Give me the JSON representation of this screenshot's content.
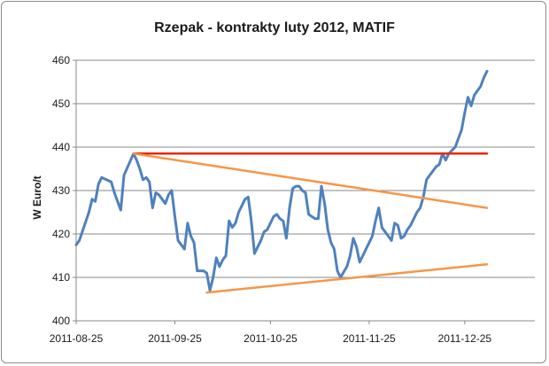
{
  "chart_data": {
    "type": "line",
    "title": "Rzepak - kontrakty luty 2012, MATIF",
    "xlabel": "",
    "ylabel": "W Euro/t",
    "ylim": [
      400,
      460
    ],
    "y_ticks": [
      400,
      410,
      420,
      430,
      440,
      450,
      460
    ],
    "x_tick_labels": [
      "2011-08-25",
      "2011-09-25",
      "2011-10-25",
      "2011-11-25",
      "2011-12-25"
    ],
    "x_range": [
      "2011-08-25",
      "2012-01-16"
    ],
    "grid": "horizontal",
    "legend": "none",
    "series": [
      {
        "color": "#4f81bd",
        "style": "solid",
        "points": [
          [
            "2011-08-25",
            417.5
          ],
          [
            "2011-08-26",
            418.5
          ],
          [
            "2011-08-29",
            425.0
          ],
          [
            "2011-08-30",
            428.0
          ],
          [
            "2011-08-31",
            427.5
          ],
          [
            "2011-09-01",
            431.5
          ],
          [
            "2011-09-02",
            433.0
          ],
          [
            "2011-09-05",
            432.0
          ],
          [
            "2011-09-06",
            429.5
          ],
          [
            "2011-09-07",
            427.5
          ],
          [
            "2011-09-08",
            425.5
          ],
          [
            "2011-09-09",
            433.5
          ],
          [
            "2011-09-12",
            438.5
          ],
          [
            "2011-09-13",
            437.0
          ],
          [
            "2011-09-14",
            435.0
          ],
          [
            "2011-09-15",
            432.5
          ],
          [
            "2011-09-16",
            433.0
          ],
          [
            "2011-09-17",
            432.0
          ],
          [
            "2011-09-18",
            426.0
          ],
          [
            "2011-09-19",
            429.5
          ],
          [
            "2011-09-20",
            429.0
          ],
          [
            "2011-09-21",
            428.0
          ],
          [
            "2011-09-22",
            427.0
          ],
          [
            "2011-09-23",
            429.0
          ],
          [
            "2011-09-24",
            430.0
          ],
          [
            "2011-09-25",
            424.0
          ],
          [
            "2011-09-26",
            418.5
          ],
          [
            "2011-09-27",
            417.5
          ],
          [
            "2011-09-28",
            416.5
          ],
          [
            "2011-09-29",
            422.5
          ],
          [
            "2011-09-30",
            419.5
          ],
          [
            "2011-10-01",
            418.0
          ],
          [
            "2011-10-02",
            411.5
          ],
          [
            "2011-10-03",
            411.5
          ],
          [
            "2011-10-04",
            411.5
          ],
          [
            "2011-10-05",
            411.0
          ],
          [
            "2011-10-06",
            407.0
          ],
          [
            "2011-10-07",
            410.0
          ],
          [
            "2011-10-08",
            414.5
          ],
          [
            "2011-10-09",
            412.5
          ],
          [
            "2011-10-10",
            414.0
          ],
          [
            "2011-10-11",
            415.0
          ],
          [
            "2011-10-12",
            423.0
          ],
          [
            "2011-10-13",
            421.5
          ],
          [
            "2011-10-14",
            422.5
          ],
          [
            "2011-10-15",
            425.0
          ],
          [
            "2011-10-16",
            426.5
          ],
          [
            "2011-10-17",
            428.0
          ],
          [
            "2011-10-18",
            428.5
          ],
          [
            "2011-10-19",
            423.0
          ],
          [
            "2011-10-20",
            415.5
          ],
          [
            "2011-10-21",
            417.0
          ],
          [
            "2011-10-22",
            418.5
          ],
          [
            "2011-10-23",
            420.5
          ],
          [
            "2011-10-24",
            421.0
          ],
          [
            "2011-10-25",
            422.5
          ],
          [
            "2011-10-26",
            424.0
          ],
          [
            "2011-10-27",
            424.5
          ],
          [
            "2011-10-28",
            423.5
          ],
          [
            "2011-10-29",
            423.0
          ],
          [
            "2011-10-30",
            419.0
          ],
          [
            "2011-10-31",
            426.0
          ],
          [
            "2011-11-01",
            430.5
          ],
          [
            "2011-11-02",
            431.0
          ],
          [
            "2011-11-03",
            431.0
          ],
          [
            "2011-11-04",
            430.0
          ],
          [
            "2011-11-05",
            429.5
          ],
          [
            "2011-11-06",
            424.5
          ],
          [
            "2011-11-07",
            424.0
          ],
          [
            "2011-11-08",
            423.5
          ],
          [
            "2011-11-09",
            423.5
          ],
          [
            "2011-11-10",
            431.0
          ],
          [
            "2011-11-11",
            427.0
          ],
          [
            "2011-11-12",
            421.0
          ],
          [
            "2011-11-13",
            418.0
          ],
          [
            "2011-11-14",
            416.5
          ],
          [
            "2011-11-15",
            411.5
          ],
          [
            "2011-11-16",
            410.0
          ],
          [
            "2011-11-18",
            412.5
          ],
          [
            "2011-11-19",
            415.0
          ],
          [
            "2011-11-20",
            419.0
          ],
          [
            "2011-11-21",
            417.0
          ],
          [
            "2011-11-22",
            413.5
          ],
          [
            "2011-11-23",
            415.0
          ],
          [
            "2011-11-24",
            416.5
          ],
          [
            "2011-11-25",
            418.0
          ],
          [
            "2011-11-26",
            419.5
          ],
          [
            "2011-11-27",
            423.0
          ],
          [
            "2011-11-28",
            426.0
          ],
          [
            "2011-11-29",
            421.5
          ],
          [
            "2011-11-30",
            420.5
          ],
          [
            "2011-12-01",
            419.5
          ],
          [
            "2011-12-02",
            418.5
          ],
          [
            "2011-12-03",
            422.5
          ],
          [
            "2011-12-04",
            422.0
          ],
          [
            "2011-12-05",
            419.0
          ],
          [
            "2011-12-06",
            419.5
          ],
          [
            "2011-12-07",
            421.0
          ],
          [
            "2011-12-08",
            422.0
          ],
          [
            "2011-12-09",
            423.5
          ],
          [
            "2011-12-10",
            425.0
          ],
          [
            "2011-12-11",
            426.0
          ],
          [
            "2011-12-12",
            428.5
          ],
          [
            "2011-12-13",
            432.5
          ],
          [
            "2011-12-14",
            433.5
          ],
          [
            "2011-12-15",
            434.5
          ],
          [
            "2011-12-16",
            435.5
          ],
          [
            "2011-12-17",
            436.0
          ],
          [
            "2011-12-18",
            438.5
          ],
          [
            "2011-12-19",
            437.0
          ],
          [
            "2011-12-20",
            438.5
          ],
          [
            "2011-12-22",
            440.0
          ],
          [
            "2011-12-23",
            442.0
          ],
          [
            "2011-12-24",
            444.0
          ],
          [
            "2011-12-25",
            448.0
          ],
          [
            "2011-12-26",
            451.5
          ],
          [
            "2011-12-27",
            449.5
          ],
          [
            "2011-12-28",
            452.0
          ],
          [
            "2011-12-30",
            454.0
          ],
          [
            "2011-12-31",
            456.0
          ],
          [
            "2012-01-01",
            457.5
          ]
        ]
      },
      {
        "color": "#e8290b",
        "style": "solid",
        "points": [
          [
            "2011-09-12",
            438.5
          ],
          [
            "2012-01-01",
            438.5
          ]
        ]
      },
      {
        "color": "#f79646",
        "style": "solid",
        "points": [
          [
            "2011-09-12",
            438.5
          ],
          [
            "2012-01-01",
            426.0
          ]
        ]
      },
      {
        "color": "#f79646",
        "style": "solid",
        "points": [
          [
            "2011-10-05",
            406.5
          ],
          [
            "2012-01-01",
            413.0
          ]
        ]
      }
    ]
  }
}
